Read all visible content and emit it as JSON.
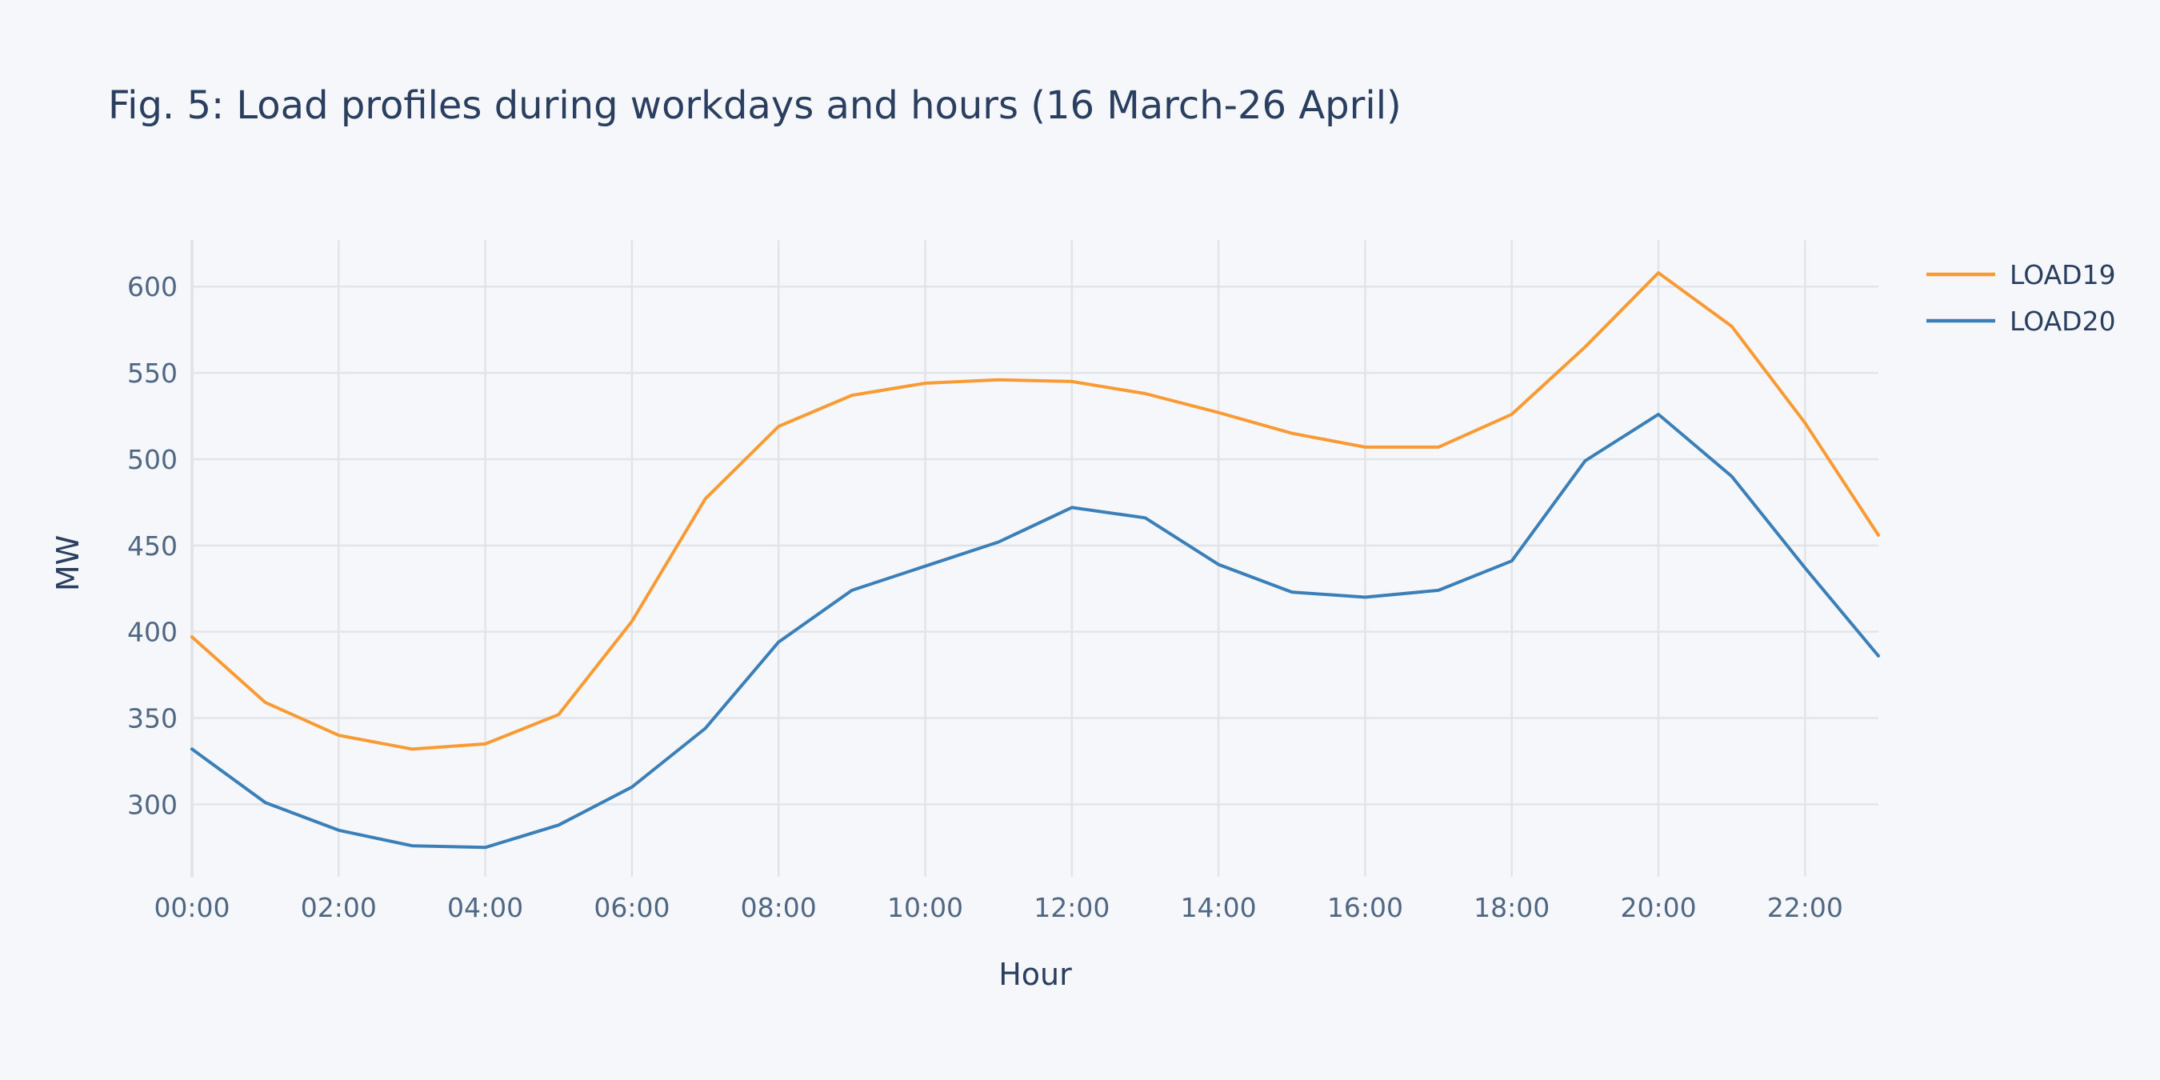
{
  "chart_data": {
    "type": "line",
    "title": "Fig. 5: Load profiles during workdays and hours (16 March-26 April)",
    "xlabel": "Hour",
    "ylabel": "MW",
    "x": [
      "00:00",
      "01:00",
      "02:00",
      "03:00",
      "04:00",
      "05:00",
      "06:00",
      "07:00",
      "08:00",
      "09:00",
      "10:00",
      "11:00",
      "12:00",
      "13:00",
      "14:00",
      "15:00",
      "16:00",
      "17:00",
      "18:00",
      "19:00",
      "20:00",
      "21:00",
      "22:00",
      "23:00"
    ],
    "x_tick_labels": [
      "00:00",
      "02:00",
      "04:00",
      "06:00",
      "08:00",
      "10:00",
      "12:00",
      "14:00",
      "16:00",
      "18:00",
      "20:00",
      "22:00"
    ],
    "y_ticks": [
      300,
      350,
      400,
      450,
      500,
      550,
      600
    ],
    "ylim": [
      258,
      627
    ],
    "grid": true,
    "legend_position": "top-right",
    "series": [
      {
        "name": "LOAD19",
        "color": "#fa9a34",
        "values": [
          397,
          359,
          340,
          332,
          335,
          352,
          406,
          477,
          519,
          537,
          544,
          546,
          545,
          538,
          527,
          515,
          507,
          507,
          526,
          565,
          608,
          577,
          521,
          456
        ]
      },
      {
        "name": "LOAD20",
        "color": "#3b7fb9",
        "values": [
          332,
          301,
          285,
          276,
          275,
          288,
          310,
          344,
          394,
          424,
          438,
          452,
          472,
          466,
          439,
          423,
          420,
          424,
          441,
          499,
          526,
          490,
          437,
          386
        ]
      }
    ]
  }
}
